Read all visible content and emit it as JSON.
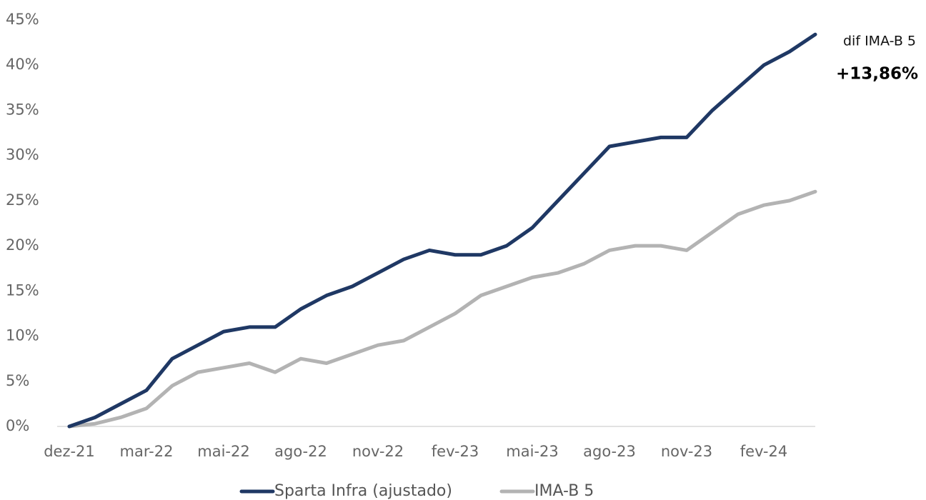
{
  "chart_data": {
    "type": "line",
    "categories": [
      "dez-21",
      null,
      null,
      "mar-22",
      null,
      null,
      "mai-22",
      null,
      null,
      "ago-22",
      null,
      null,
      "nov-22",
      null,
      null,
      "fev-23",
      null,
      null,
      "mai-23",
      null,
      null,
      "ago-23",
      null,
      null,
      "nov-23",
      null,
      null,
      "fev-24",
      null,
      null
    ],
    "series": [
      {
        "name": "Sparta Infra (ajustado)",
        "color": "#1f3864",
        "values": [
          0,
          1,
          2.5,
          4,
          7.5,
          9,
          10.5,
          11,
          11,
          13,
          14.5,
          15.5,
          17,
          18.5,
          19.5,
          19,
          19,
          20,
          22,
          25,
          28,
          31,
          31.5,
          32,
          32,
          35,
          37.5,
          40,
          41.5,
          43.4
        ]
      },
      {
        "name": "IMA-B 5",
        "color": "#b3b3b3",
        "values": [
          0,
          0.3,
          1,
          2,
          4.5,
          6,
          6.5,
          7,
          6,
          7.5,
          7,
          8,
          9,
          9.5,
          11,
          12.5,
          14.5,
          15.5,
          16.5,
          17,
          18,
          19.5,
          20,
          20,
          19.5,
          21.5,
          23.5,
          24.5,
          25,
          26
        ]
      }
    ],
    "ylim": [
      0,
      45
    ],
    "yticks": [
      {
        "value": 0,
        "label": "0%"
      },
      {
        "value": 5,
        "label": "5%"
      },
      {
        "value": 10,
        "label": "10%"
      },
      {
        "value": 15,
        "label": "15%"
      },
      {
        "value": 20,
        "label": "20%"
      },
      {
        "value": 25,
        "label": "25%"
      },
      {
        "value": 30,
        "label": "30%"
      },
      {
        "value": 35,
        "label": "35%"
      },
      {
        "value": 40,
        "label": "40%"
      },
      {
        "value": 45,
        "label": "45%"
      }
    ],
    "annotations": [
      "dif IMA-B 5",
      "+13,86%"
    ],
    "legend": "bottom"
  }
}
